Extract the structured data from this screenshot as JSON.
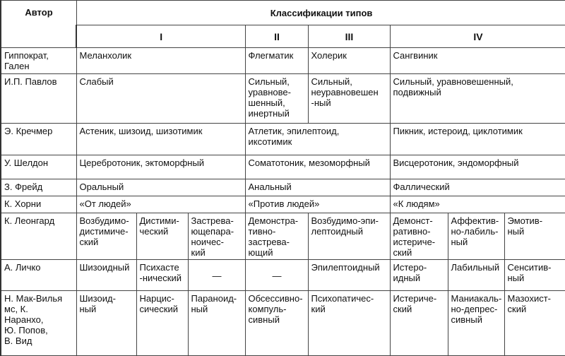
{
  "header": {
    "author": "Автор",
    "classifications": "Классификации типов",
    "groups": [
      "I",
      "II",
      "III",
      "IV"
    ]
  },
  "rows": [
    {
      "author": "Гиппократ,\nГален",
      "cells": [
        {
          "text": "Меланхолик",
          "span": 3
        },
        {
          "text": "Флегматик",
          "span": 1
        },
        {
          "text": "Холерик",
          "span": 1
        },
        {
          "text": "Сангвиник",
          "span": 3
        }
      ]
    },
    {
      "author": "И.П. Павлов",
      "cells": [
        {
          "text": "Слабый",
          "span": 3
        },
        {
          "text": "Сильный,\nуравнове-\nшенный,\nинертный",
          "span": 1
        },
        {
          "text": "Сильный,\nнеуравновешен\n-ный",
          "span": 1
        },
        {
          "text": "Сильный, уравновешенный,\nподвижный",
          "span": 3
        }
      ]
    },
    {
      "author": "Э. Кречмер",
      "cells": [
        {
          "text": "Астеник, шизоид, шизотимик",
          "span": 3
        },
        {
          "text": "Атлетик, эпилептоид,\nиксотимик",
          "span": 2
        },
        {
          "text": "Пикник, истероид, циклотимик",
          "span": 3
        }
      ]
    },
    {
      "author": "У. Шелдон",
      "cells": [
        {
          "text": "Церебротоник, эктоморфный",
          "span": 3
        },
        {
          "text": "Соматотоник, мезоморфный",
          "span": 2
        },
        {
          "text": "Висцеротоник, эндоморфный",
          "span": 3
        }
      ]
    },
    {
      "author": "З. Фрейд",
      "cells": [
        {
          "text": "Оральный",
          "span": 3
        },
        {
          "text": "Анальный",
          "span": 2
        },
        {
          "text": "Фаллический",
          "span": 3
        }
      ]
    },
    {
      "author": "К. Хорни",
      "cells": [
        {
          "text": "«От людей»",
          "span": 3
        },
        {
          "text": "«Против людей»",
          "span": 2
        },
        {
          "text": "«К людям»",
          "span": 3
        }
      ]
    },
    {
      "author": "К. Леонгард",
      "cells": [
        {
          "text": "Возбудимо-\nдистимиче-\nский",
          "span": 1
        },
        {
          "text": "Дистими-\nческий",
          "span": 1
        },
        {
          "text": "Застрева-\nющепара-\nноичес-\nкий",
          "span": 1
        },
        {
          "text": "Демонстра-\nтивно-\nзастрева-\nющий",
          "span": 1
        },
        {
          "text": "Возбудимо-эпи-\nлептоидный",
          "span": 1
        },
        {
          "text": "Демонст-\nративно-\nистериче-\nский",
          "span": 1
        },
        {
          "text": "Аффектив-\nно-лабиль-\nный",
          "span": 1
        },
        {
          "text": "Эмотив-\nный",
          "span": 1
        }
      ]
    },
    {
      "author": "А. Личко",
      "cells": [
        {
          "text": "Шизоидный",
          "span": 1
        },
        {
          "text": "Психасте\n-нический",
          "span": 1
        },
        {
          "text": "—",
          "span": 1
        },
        {
          "text": "—",
          "span": 1
        },
        {
          "text": "Эпилептоидный",
          "span": 1
        },
        {
          "text": "Истеро-\nидный",
          "span": 1
        },
        {
          "text": "Лабильный",
          "span": 1
        },
        {
          "text": "Сенситив-\nный",
          "span": 1
        }
      ]
    },
    {
      "author": "Н. Мак-Вилья\nмс, К.\nНаранхо,\nЮ. Попов,\nВ. Вид",
      "cells": [
        {
          "text": "Шизоид-\nный",
          "span": 1
        },
        {
          "text": "Нарцис-\nсический",
          "span": 1
        },
        {
          "text": "Параноид-\nный",
          "span": 1
        },
        {
          "text": "Обсессивно-\nкомпуль-\nсивный",
          "span": 1
        },
        {
          "text": "Психопатичес-\nкий",
          "span": 1
        },
        {
          "text": "Истериче-\nский",
          "span": 1
        },
        {
          "text": "Маниакаль-\nно-депрес-\nсивный",
          "span": 1
        },
        {
          "text": "Мазохист-\nский",
          "span": 1
        }
      ]
    }
  ]
}
